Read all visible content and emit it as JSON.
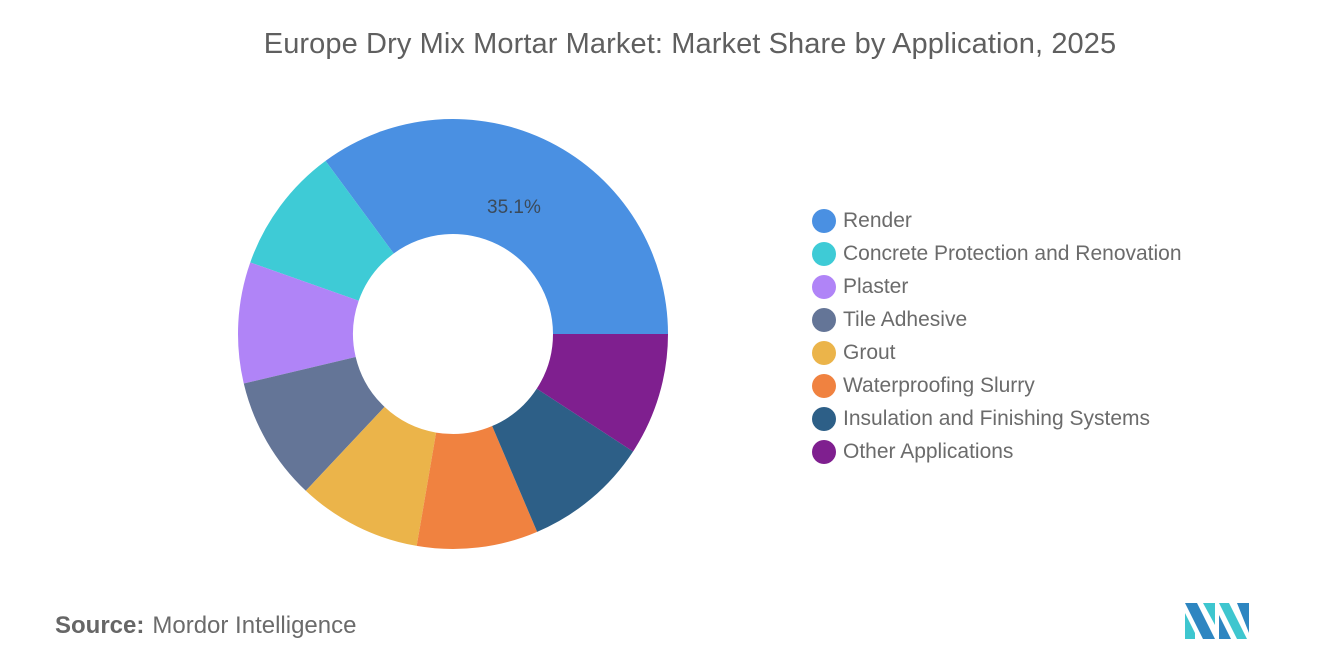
{
  "title": "Europe Dry Mix Mortar Market: Market Share by Application, 2025",
  "chart_data": {
    "type": "pie",
    "subtype": "donut",
    "title": "Europe Dry Mix Mortar Market: Market Share by Application, 2025",
    "categories": [
      "Render",
      "Concrete Protection and Renovation",
      "Plaster",
      "Tile Adhesive",
      "Grout",
      "Waterproofing Slurry",
      "Insulation and Finishing Systems",
      "Other Applications"
    ],
    "values": [
      35.1,
      9.5,
      9.1,
      9.3,
      9.3,
      9.1,
      9.4,
      9.2
    ],
    "colors": [
      "#4a90e2",
      "#3ecbd6",
      "#b084f7",
      "#647597",
      "#ebb44a",
      "#f08240",
      "#2d5f87",
      "#7f1f8f"
    ],
    "labels_shown": {
      "Render": "35.1%"
    },
    "legend_position": "right"
  },
  "slice_label": "35.1%",
  "legend": [
    {
      "label": "Render",
      "color": "#4a90e2"
    },
    {
      "label": "Concrete Protection and Renovation",
      "color": "#3ecbd6"
    },
    {
      "label": "Plaster",
      "color": "#b084f7"
    },
    {
      "label": "Tile Adhesive",
      "color": "#647597"
    },
    {
      "label": "Grout",
      "color": "#ebb44a"
    },
    {
      "label": "Waterproofing Slurry",
      "color": "#f08240"
    },
    {
      "label": "Insulation and Finishing Systems",
      "color": "#2d5f87"
    },
    {
      "label": "Other Applications",
      "color": "#7f1f8f"
    }
  ],
  "source": {
    "label": "Source:",
    "value": "Mordor Intelligence"
  }
}
